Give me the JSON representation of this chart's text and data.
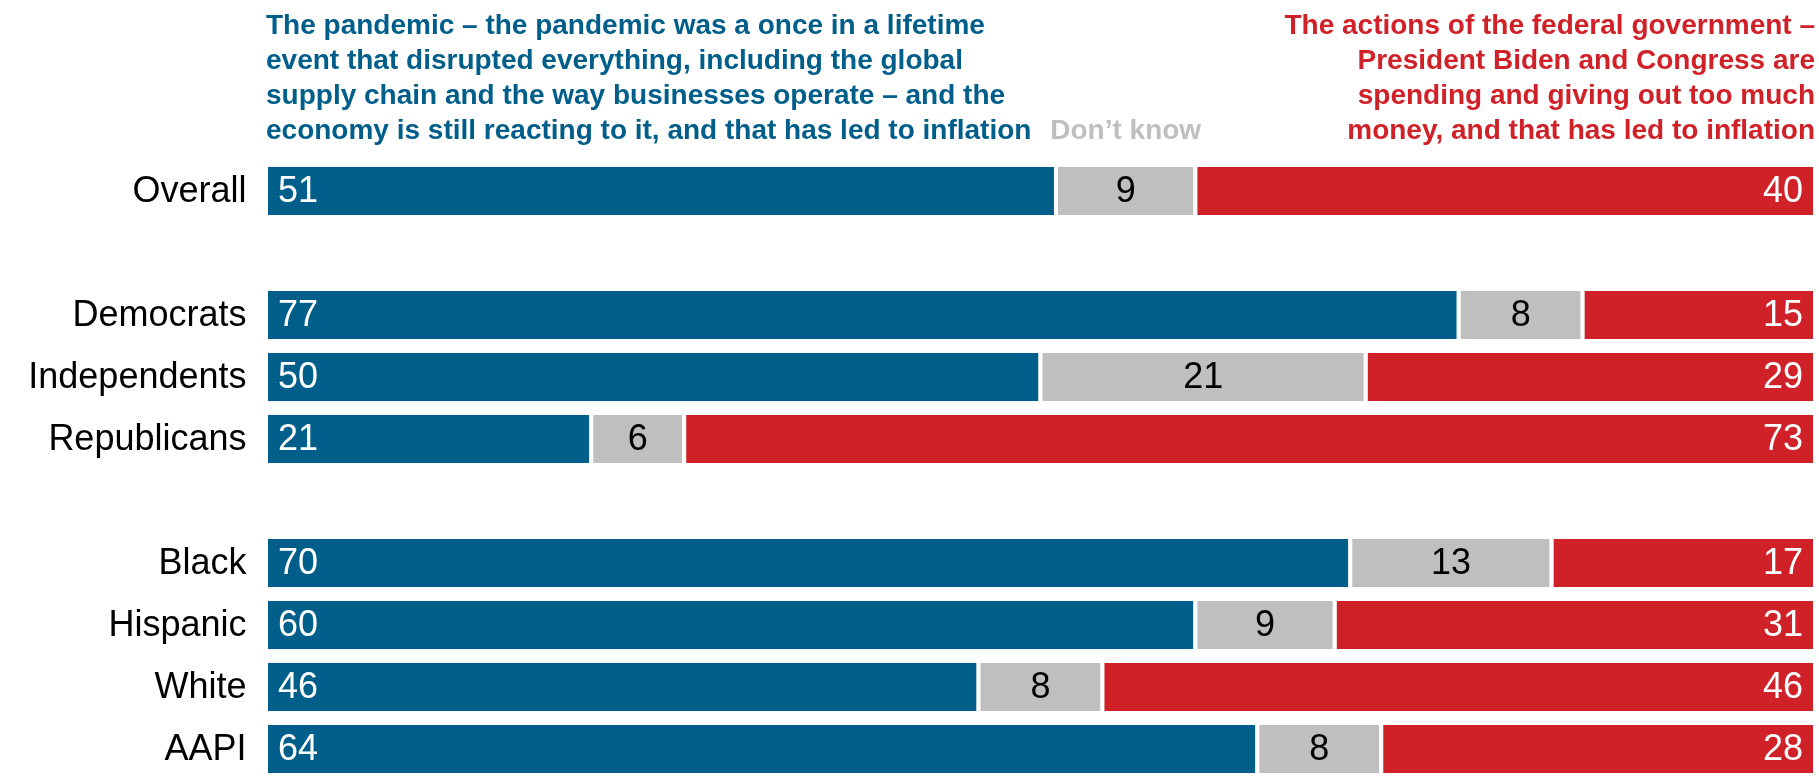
{
  "chart_data": {
    "type": "bar",
    "orientation": "horizontal",
    "stacked": true,
    "data_labels": true,
    "legend": "top",
    "categories": [
      "Overall",
      null,
      "Democrats",
      "Independents",
      "Republicans",
      null,
      "Black",
      "Hispanic",
      "White",
      "AAPI"
    ],
    "series": [
      {
        "name": "The pandemic – the pandemic was a once in a lifetime event that disrupted everything, including the global supply chain and the way businesses operate – and the economy is still reacting to it, and that has led to inflation",
        "color": "#005e8a",
        "values": [
          51,
          null,
          77,
          50,
          21,
          null,
          70,
          60,
          46,
          64
        ]
      },
      {
        "name": "Don’t know",
        "color": "#bfbfbf",
        "values": [
          9,
          null,
          8,
          21,
          6,
          null,
          13,
          9,
          8,
          8
        ]
      },
      {
        "name": "The actions of the federal government – President Biden and Congress are spending and giving out too much money, and that has led to inflation",
        "color": "#d12128",
        "values": [
          40,
          null,
          15,
          29,
          73,
          null,
          17,
          31,
          46,
          28
        ]
      }
    ]
  }
}
